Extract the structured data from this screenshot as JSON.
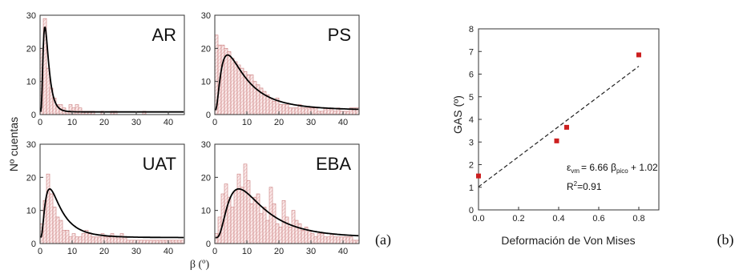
{
  "figure": {
    "label_a": "(a)",
    "label_b": "(b)"
  },
  "chart_data": [
    {
      "type": "bar",
      "title": "AR",
      "xlim": [
        0,
        45
      ],
      "ylim": [
        0,
        30
      ],
      "xticks": [
        0,
        10,
        20,
        30,
        40
      ],
      "yticks": [
        0,
        10,
        20,
        30
      ],
      "bin_width": 1,
      "values": [
        20,
        29,
        14,
        8,
        5,
        3,
        3,
        2,
        1,
        3,
        2,
        3,
        2,
        1,
        1,
        1,
        1,
        0,
        0,
        1,
        0,
        0,
        1,
        1,
        0,
        0,
        0,
        0,
        0,
        0,
        0,
        0,
        1,
        0,
        0,
        0,
        0,
        0,
        0,
        0,
        0,
        0,
        0,
        0,
        0
      ],
      "fit_color": "#000000"
    },
    {
      "type": "bar",
      "title": "PS",
      "xlim": [
        0,
        45
      ],
      "ylim": [
        0,
        30
      ],
      "xticks": [
        0,
        10,
        20,
        30,
        40
      ],
      "yticks": [
        0,
        10,
        20,
        30
      ],
      "bin_width": 1,
      "values": [
        24,
        21,
        21,
        20,
        19,
        17,
        16,
        15,
        14,
        13,
        12,
        12,
        10,
        9,
        8,
        7,
        6,
        5,
        4,
        5,
        3,
        3,
        3,
        2,
        2,
        2,
        3,
        2,
        2,
        2,
        2,
        2,
        1,
        1,
        2,
        2,
        2,
        1,
        2,
        1,
        1,
        1,
        2,
        2,
        2
      ],
      "fit_color": "#000000"
    },
    {
      "type": "bar",
      "title": "UAT",
      "xlim": [
        0,
        45
      ],
      "ylim": [
        0,
        30
      ],
      "xticks": [
        0,
        10,
        20,
        30,
        40
      ],
      "yticks": [
        0,
        10,
        20,
        30
      ],
      "bin_width": 1,
      "values": [
        6,
        13,
        21,
        15,
        11,
        8,
        7,
        4,
        4,
        2,
        3,
        2,
        2,
        3,
        4,
        3,
        2,
        2,
        2,
        3,
        2,
        2,
        3,
        2,
        2,
        3,
        2,
        1,
        1,
        1,
        1,
        1,
        1,
        1,
        1,
        1,
        1,
        1,
        1,
        1,
        1,
        1,
        1,
        1,
        1
      ],
      "fit_color": "#000000"
    },
    {
      "type": "bar",
      "title": "EBA",
      "xlim": [
        0,
        45
      ],
      "ylim": [
        0,
        30
      ],
      "xticks": [
        0,
        10,
        20,
        30,
        40
      ],
      "yticks": [
        0,
        10,
        20,
        30
      ],
      "bin_width": 1,
      "values": [
        3,
        8,
        15,
        18,
        14,
        11,
        16,
        21,
        17,
        24,
        19,
        12,
        14,
        15,
        9,
        11,
        7,
        17,
        12,
        6,
        5,
        13,
        8,
        5,
        10,
        7,
        6,
        4,
        5,
        4,
        3,
        2,
        3,
        3,
        2,
        2,
        3,
        2,
        2,
        2,
        2,
        2,
        2,
        1,
        1
      ],
      "fit_color": "#000000"
    },
    {
      "type": "scatter",
      "xlabel": "Deformación de Von Mises",
      "ylabel": "GAS (º)",
      "xlim": [
        0,
        0.9
      ],
      "ylim": [
        0,
        8
      ],
      "xticks": [
        "0.0",
        "0.2",
        "0.4",
        "0.6",
        "0.8"
      ],
      "yticks": [
        "0",
        "1",
        "2",
        "3",
        "4",
        "5",
        "6",
        "7",
        "8"
      ],
      "points": [
        {
          "x": 0.0,
          "y": 1.5
        },
        {
          "x": 0.39,
          "y": 3.05
        },
        {
          "x": 0.44,
          "y": 3.65
        },
        {
          "x": 0.8,
          "y": 6.85
        }
      ],
      "fit": {
        "slope": 6.66,
        "intercept": 1.02,
        "style": "dashed"
      },
      "point_color": "#cc1f1f",
      "annotation_eps": "ε",
      "annotation_eps_sub": "vm",
      "annotation_mid": "= 6.66 β",
      "annotation_beta_sub": "pico",
      "annotation_end": " + 1.02",
      "annotation_r2_pre": "R",
      "annotation_r2_sup": "2",
      "annotation_r2_post": "=0.91"
    }
  ],
  "shared_axes": {
    "ylabel": "Nº cuentas",
    "xlabel": "β (º)"
  },
  "colors": {
    "bar_stroke": "#c97b7b",
    "bar_fill": "#fbeaea"
  }
}
